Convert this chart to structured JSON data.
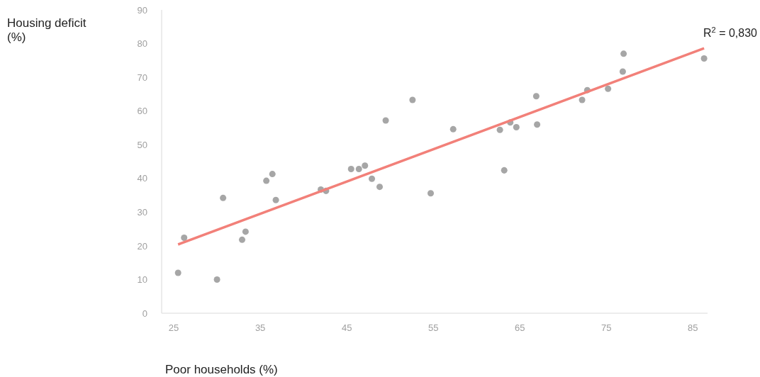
{
  "chart_data": {
    "type": "scatter",
    "xlabel": "Poor households (%)",
    "ylabel": "Housing deficit\n(%)",
    "annotations": [
      "R$^{2}$ = 0,830"
    ],
    "xlim": [
      23.6,
      86.7
    ],
    "xticks": [
      25,
      35,
      45,
      55,
      65,
      75,
      85
    ],
    "ylim": [
      0,
      90
    ],
    "yticks": [
      0,
      10,
      20,
      30,
      40,
      50,
      60,
      70,
      80,
      90
    ],
    "series": [
      {
        "marker": "circle",
        "color": "#a6a6a6",
        "x": [
          25.5,
          26.2,
          30.0,
          30.7,
          32.9,
          33.3,
          35.7,
          36.4,
          36.8,
          42.0,
          42.6,
          45.5,
          46.4,
          47.1,
          47.9,
          48.8,
          49.5,
          52.6,
          54.7,
          57.3,
          62.7,
          63.2,
          63.9,
          64.6,
          66.9,
          67.0,
          72.2,
          72.8,
          75.2,
          76.9,
          77.0,
          86.3
        ],
        "values": [
          12.0,
          22.4,
          10.0,
          34.2,
          21.8,
          24.2,
          39.3,
          41.3,
          33.6,
          36.7,
          36.3,
          42.8,
          42.8,
          43.8,
          39.9,
          37.5,
          57.2,
          63.3,
          35.6,
          54.6,
          54.4,
          42.4,
          56.6,
          55.2,
          64.4,
          56.0,
          63.3,
          66.2,
          66.6,
          71.7,
          77.0,
          75.6
        ]
      },
      {
        "type": "line",
        "color": "#f28079",
        "x": [
          25.5,
          86.3
        ],
        "values": [
          20.4,
          78.6
        ]
      }
    ]
  }
}
